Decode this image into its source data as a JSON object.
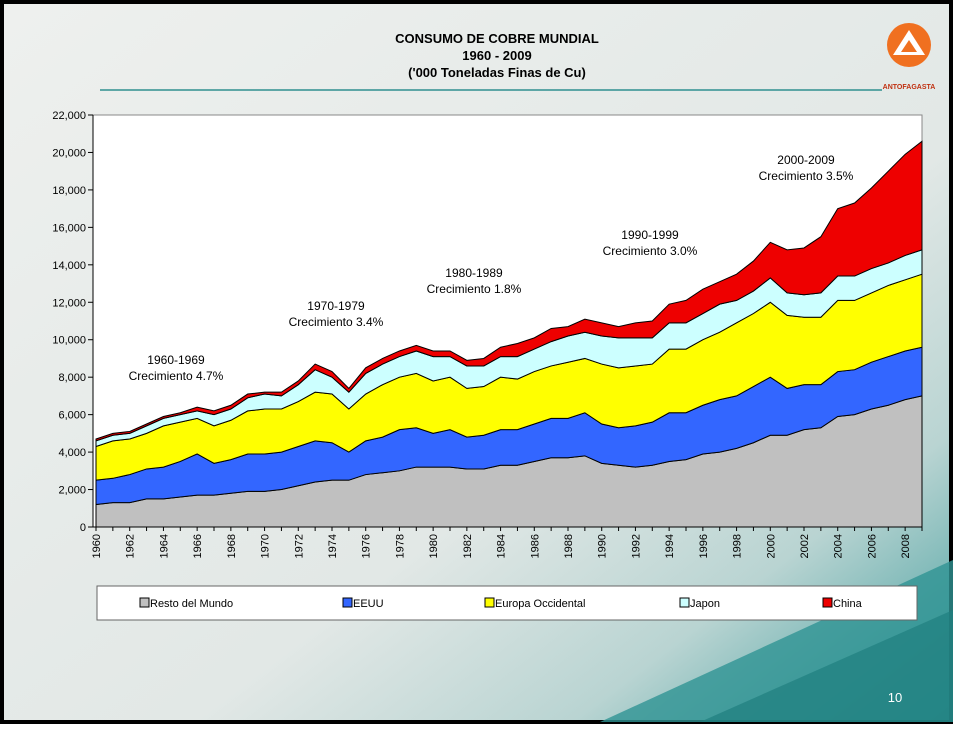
{
  "chart_data": {
    "type": "stacked_area",
    "title": "CONSUMO DE COBRE MUNDIAL",
    "subtitle": "1960 - 2009",
    "unit_label": "('000 Toneladas Finas de Cu)",
    "logo_text": "ANTOFAGASTA",
    "page_number": "10",
    "categories": [
      "1960",
      null,
      "1962",
      null,
      "1964",
      null,
      "1966",
      null,
      "1968",
      null,
      "1970",
      null,
      "1972",
      null,
      "1974",
      null,
      "1976",
      null,
      "1978",
      null,
      "1980",
      null,
      "1982",
      null,
      "1984",
      null,
      "1986",
      null,
      "1988",
      null,
      "1990",
      null,
      "1992",
      null,
      "1994",
      null,
      "1996",
      null,
      "1998",
      null,
      "2000",
      null,
      "2002",
      null,
      "2004",
      null,
      "2006",
      null,
      "2008",
      null
    ],
    "series": [
      {
        "name": "Resto del Mundo",
        "color": "#c0c0c0",
        "values": [
          1200,
          1300,
          1300,
          1500,
          1500,
          1600,
          1700,
          1700,
          1800,
          1900,
          1900,
          2000,
          2200,
          2400,
          2500,
          2500,
          2800,
          2900,
          3000,
          3200,
          3200,
          3200,
          3100,
          3100,
          3300,
          3300,
          3500,
          3700,
          3700,
          3800,
          3400,
          3300,
          3200,
          3300,
          3500,
          3600,
          3900,
          4000,
          4200,
          4500,
          4900,
          4900,
          5200,
          5300,
          5900,
          6000,
          6300,
          6500,
          6800,
          7000
        ]
      },
      {
        "name": "EEUU",
        "color": "#3366ff",
        "values": [
          1300,
          1300,
          1500,
          1600,
          1700,
          1900,
          2200,
          1700,
          1800,
          2000,
          2000,
          2000,
          2100,
          2200,
          2000,
          1500,
          1800,
          1900,
          2200,
          2100,
          1800,
          2000,
          1700,
          1800,
          1900,
          1900,
          2000,
          2100,
          2100,
          2300,
          2100,
          2000,
          2200,
          2300,
          2600,
          2500,
          2600,
          2800,
          2800,
          3000,
          3100,
          2500,
          2400,
          2300,
          2400,
          2400,
          2500,
          2600,
          2600,
          2600
        ]
      },
      {
        "name": "Europa Occidental",
        "color": "#ffff00",
        "values": [
          1800,
          2000,
          1900,
          1900,
          2200,
          2100,
          1900,
          2000,
          2100,
          2300,
          2400,
          2300,
          2400,
          2600,
          2600,
          2300,
          2500,
          2800,
          2800,
          2900,
          2800,
          2800,
          2600,
          2600,
          2800,
          2700,
          2800,
          2800,
          3000,
          2900,
          3200,
          3200,
          3200,
          3100,
          3400,
          3400,
          3500,
          3600,
          3900,
          3900,
          4000,
          3900,
          3600,
          3600,
          3800,
          3700,
          3700,
          3800,
          3800,
          3900
        ]
      },
      {
        "name": "Japon",
        "color": "#ccffff",
        "values": [
          300,
          300,
          300,
          400,
          400,
          400,
          400,
          600,
          600,
          700,
          800,
          700,
          900,
          1200,
          900,
          900,
          1100,
          1100,
          1100,
          1200,
          1300,
          1100,
          1200,
          1100,
          1100,
          1200,
          1200,
          1300,
          1400,
          1400,
          1500,
          1600,
          1500,
          1400,
          1400,
          1400,
          1400,
          1500,
          1200,
          1200,
          1300,
          1200,
          1200,
          1300,
          1300,
          1300,
          1300,
          1200,
          1300,
          1300
        ]
      },
      {
        "name": "China",
        "color": "#ee0000",
        "values": [
          100,
          100,
          100,
          100,
          100,
          100,
          200,
          200,
          200,
          200,
          100,
          200,
          200,
          300,
          300,
          200,
          300,
          300,
          300,
          300,
          300,
          300,
          300,
          400,
          500,
          700,
          600,
          700,
          500,
          700,
          700,
          600,
          800,
          900,
          1000,
          1200,
          1300,
          1200,
          1400,
          1600,
          1900,
          2300,
          2500,
          3000,
          3600,
          3900,
          4300,
          4900,
          5400,
          5800
        ]
      }
    ],
    "ylim": [
      0,
      22000
    ],
    "yticks": [
      0,
      {
        "value": 2000,
        "label": "2,000"
      },
      {
        "value": 4000,
        "label": "4,000"
      },
      {
        "value": 6000,
        "label": "6,000"
      },
      {
        "value": 8000,
        "label": "8,000"
      },
      {
        "value": 10000,
        "label": "10,000"
      },
      {
        "value": 12000,
        "label": "12,000"
      },
      {
        "value": 14000,
        "label": "14,000"
      },
      {
        "value": 16000,
        "label": "16,000"
      },
      {
        "value": 18000,
        "label": "18,000"
      },
      {
        "value": 20000,
        "label": "20,000"
      },
      {
        "value": 22000,
        "label": "22,000"
      }
    ],
    "annotations": [
      [
        "1960-1969",
        "Crecimiento 4.7%"
      ],
      [
        "1970-1979",
        "Crecimiento 3.4%"
      ],
      [
        "1980-1989",
        "Crecimiento 1.8%"
      ],
      [
        "1990-1999",
        "Crecimiento 3.0%"
      ],
      [
        "2000-2009",
        "Crecimiento 3.5%"
      ]
    ],
    "legend": "bottom"
  }
}
